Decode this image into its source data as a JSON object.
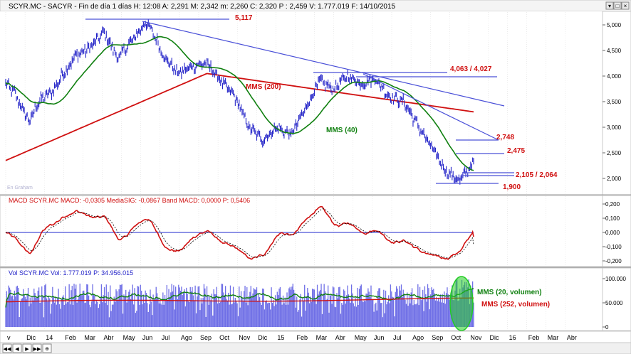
{
  "window": {
    "title": "SCYR.MC - SACYR - Fin de día 1 días  H: 12:08  A: 2,291  M: 2,342  m: 2,260  C: 2,320  P : 2,459  V: 1.777.019  F: 14/10/2015",
    "controls": [
      "▾",
      "□",
      "×"
    ]
  },
  "colors": {
    "price": "#2323c8",
    "mms40": "#108010",
    "mms200": "#d01010",
    "trend": "#4a50d8",
    "annot_red": "#d01010",
    "annot_green": "#108010",
    "macd_zero": "#4a50d8",
    "volume_bar": "#6f6fe6",
    "grid": "#dadada",
    "highlight": "#22cc22"
  },
  "annotations": {
    "peak": "5,117",
    "resistance": "4,063 / 4,027",
    "mms200": "MMS (200)",
    "mms40": "MMS (40)",
    "r2748": "2,748",
    "r2475": "2,475",
    "support": "2,105 / 2,064",
    "low": "1,900",
    "watermark": "En Graham"
  },
  "chart_data": [
    {
      "type": "line",
      "panel": "price",
      "series": [
        {
          "name": "MMS (200)"
        },
        {
          "name": "MMS (40)"
        }
      ],
      "ylim": [
        1.75,
        5.15
      ],
      "yticks": [
        "5,000",
        "4,500",
        "4,000",
        "3,500",
        "3,000",
        "2,500",
        "2,000"
      ],
      "key_points": [
        {
          "x": "Jun 2014",
          "y": 5.117
        },
        {
          "x": "Apr-May 2015",
          "y": 4.063
        },
        {
          "x": "May 2015",
          "y": 4.027
        },
        {
          "x": "Oct 2015",
          "y": 2.748
        },
        {
          "x": "Oct 2015",
          "y": 2.475
        },
        {
          "x": "Oct 2015",
          "y": 2.105
        },
        {
          "x": "Oct 2015",
          "y": 2.064
        },
        {
          "x": "Sep 2015",
          "y": 1.9
        }
      ],
      "last": {
        "high": 2.342,
        "open": 2.291,
        "low": 2.26,
        "close": 2.32,
        "volume": 1777019
      }
    },
    {
      "type": "line",
      "panel": "macd",
      "header": "MACD  SCYR.MC  MACD: -0,0305  MediaSIG: -0,0867  Band  MACD: 0,0000  P: 0,5406",
      "yticks": [
        "0,200",
        "0,100",
        "0,000",
        "-0,100",
        "-0,200"
      ],
      "ylim": [
        -0.24,
        0.24
      ],
      "values": {
        "macd": -0.0305,
        "signal": -0.0867,
        "band": 0.0
      }
    },
    {
      "type": "bar",
      "panel": "volume",
      "header": "Vol  SCYR.MC  Vol: 1.777.019  P: 34.956.015",
      "yticks": [
        "100.000",
        "50.000",
        "0"
      ],
      "series": [
        {
          "name": "MMS (20, volumen)"
        },
        {
          "name": "MMS (252, volumen)"
        }
      ]
    }
  ],
  "xaxis": {
    "labels": [
      "v",
      "Dic",
      "14",
      "Feb",
      "Mar",
      "Abr",
      "May",
      "Jun",
      "Jul",
      "Ago",
      "Sep",
      "Oct",
      "Nov",
      "Dic",
      "15",
      "Feb",
      "Mar",
      "Abr",
      "May",
      "Jun",
      "Jul",
      "Ago",
      "Sep",
      "Oct",
      "Nov",
      "Dic",
      "16",
      "Feb",
      "Mar",
      "Abr"
    ]
  },
  "nav_buttons": [
    "◀◀",
    "◀",
    "▶",
    "▶▶",
    "⊕"
  ]
}
